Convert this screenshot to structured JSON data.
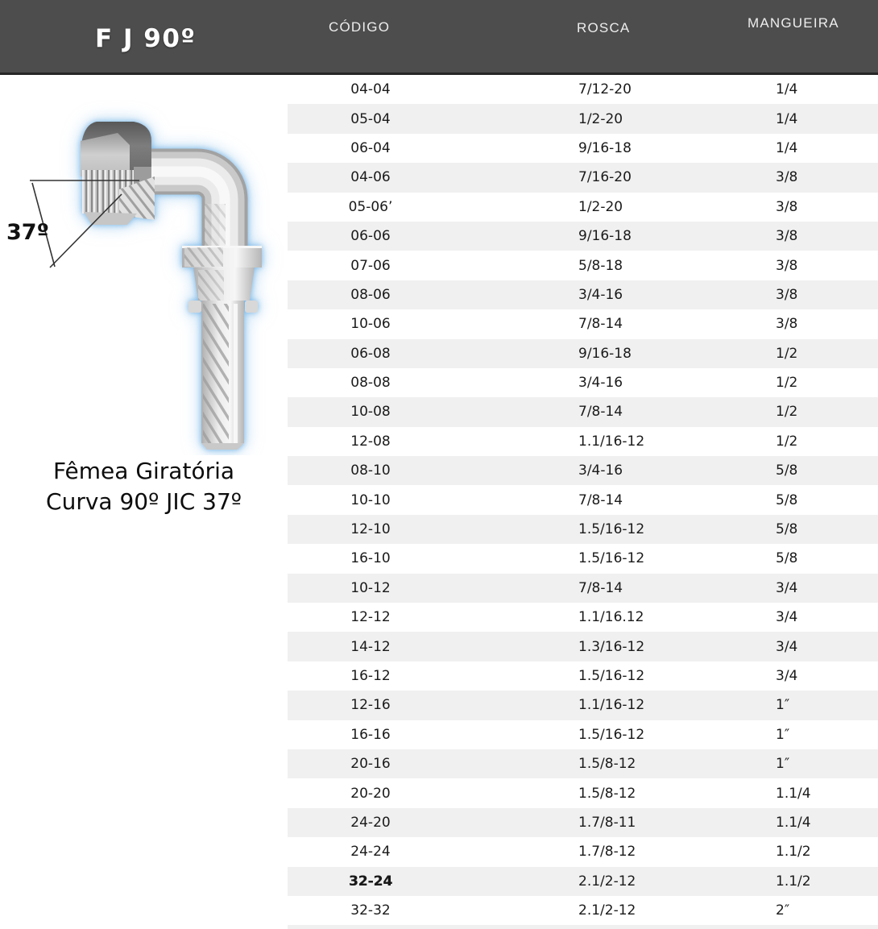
{
  "page": {
    "title": "F J 90º"
  },
  "columns": {
    "codigo": "CÓDIGO",
    "rosca": "ROSCA",
    "mangueira": "MANGUEIRA"
  },
  "product": {
    "angle_label": "37º",
    "caption": [
      "Fêmea Giratória",
      "Curva 90º JIC 37º"
    ]
  },
  "table": {
    "rows": [
      [
        "04-04",
        "7/12-20",
        "1/4"
      ],
      [
        "05-04",
        "1/2-20",
        "1/4"
      ],
      [
        "06-04",
        "9/16-18",
        "1/4"
      ],
      [
        "04-06",
        "7/16-20",
        "3/8"
      ],
      [
        "05-06’",
        "1/2-20",
        "3/8"
      ],
      [
        "06-06",
        "9/16-18",
        "3/8"
      ],
      [
        "07-06",
        "5/8-18",
        "3/8"
      ],
      [
        "08-06",
        "3/4-16",
        "3/8"
      ],
      [
        "10-06",
        "7/8-14",
        "3/8"
      ],
      [
        "06-08",
        "9/16-18",
        "1/2"
      ],
      [
        "08-08",
        "3/4-16",
        "1/2"
      ],
      [
        "10-08",
        "7/8-14",
        "1/2"
      ],
      [
        "12-08",
        "1.1/16-12",
        "1/2"
      ],
      [
        "08-10",
        "3/4-16",
        "5/8"
      ],
      [
        "10-10",
        "7/8-14",
        "5/8"
      ],
      [
        "12-10",
        "1.5/16-12",
        "5/8"
      ],
      [
        "16-10",
        "1.5/16-12",
        "5/8"
      ],
      [
        "10-12",
        "7/8-14",
        "3/4"
      ],
      [
        "12-12",
        "1.1/16.12",
        "3/4"
      ],
      [
        "14-12",
        "1.3/16-12",
        "3/4"
      ],
      [
        "16-12",
        "1.5/16-12",
        "3/4"
      ],
      [
        "12-16",
        "1.1/16-12",
        "1″"
      ],
      [
        "16-16",
        "1.5/16-12",
        "1″"
      ],
      [
        "20-16",
        "1.5/8-12",
        "1″"
      ],
      [
        "20-20",
        "1.5/8-12",
        "1.1/4"
      ],
      [
        "24-20",
        "1.7/8-11",
        "1.1/4"
      ],
      [
        "24-24",
        "1.7/8-12",
        "1.1/2"
      ],
      [
        "32-24",
        "2.1/2-12",
        "1.1/2"
      ],
      [
        "32-32",
        "2.1/2-12",
        "2″"
      ]
    ],
    "bold_code_rows": [
      27
    ]
  },
  "colors": {
    "header_bg": "#4d4d4d",
    "header_border": "#262626",
    "header_text": "#ededed",
    "row_alt": "#f0f0f0",
    "row_text": "#1a1a1a",
    "caption_text": "#0d0d0d",
    "glow_blue": "#73b2e4"
  }
}
